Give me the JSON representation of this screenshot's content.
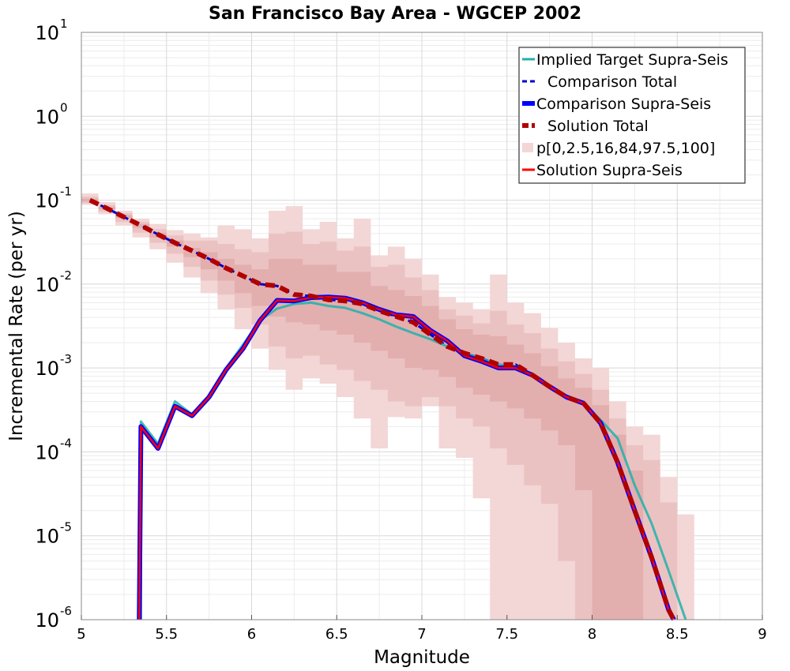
{
  "chart_data": {
    "type": "line",
    "title": "San Francisco Bay Area - WGCEP 2002",
    "xlabel": "Magnitude",
    "ylabel": "Incremental Rate (per yr)",
    "xlim": [
      5,
      9
    ],
    "ylim": [
      1e-06,
      10
    ],
    "yscale": "log",
    "grid": true,
    "legend_position": "top-right",
    "xticks": [
      "5",
      "5.5",
      "6",
      "6.5",
      "7",
      "7.5",
      "8",
      "8.5",
      "9"
    ],
    "yticks": [
      {
        "base": "10",
        "exp": "1"
      },
      {
        "base": "10",
        "exp": "0"
      },
      {
        "base": "10",
        "exp": "-1"
      },
      {
        "base": "10",
        "exp": "-2"
      },
      {
        "base": "10",
        "exp": "-3"
      },
      {
        "base": "10",
        "exp": "-4"
      },
      {
        "base": "10",
        "exp": "-5"
      },
      {
        "base": "10",
        "exp": "-6"
      }
    ],
    "bands": [
      {
        "label": "p[0,100]",
        "color": "#f3d6d6",
        "x": [
          5.05,
          5.15,
          5.25,
          5.35,
          5.45,
          5.55,
          5.65,
          5.75,
          5.85,
          5.95,
          6.05,
          6.15,
          6.25,
          6.35,
          6.45,
          6.55,
          6.65,
          6.75,
          6.85,
          6.95,
          7.05,
          7.15,
          7.25,
          7.35,
          7.45,
          7.55,
          7.65,
          7.75,
          7.85,
          7.95,
          8.05,
          8.15,
          8.25,
          8.35,
          8.45,
          8.55
        ],
        "lower": [
          0.088,
          0.068,
          0.05,
          0.036,
          0.026,
          0.018,
          0.012,
          0.0078,
          0.005,
          0.0029,
          0.0017,
          0.00095,
          0.00055,
          0.00075,
          0.00065,
          0.00045,
          0.00025,
          0.00011,
          0.00026,
          0.00025,
          0.00035,
          0.00011,
          8.5e-05,
          2.8e-05,
          9e-07,
          9e-07,
          9e-07,
          9e-07,
          9e-07,
          9e-07,
          9e-07,
          9e-07,
          9e-07,
          9e-07,
          9e-07,
          9e-07
        ],
        "upper": [
          0.12,
          0.095,
          0.075,
          0.06,
          0.052,
          0.044,
          0.04,
          0.036,
          0.05,
          0.045,
          0.035,
          0.075,
          0.085,
          0.045,
          0.055,
          0.035,
          0.06,
          0.022,
          0.028,
          0.02,
          0.013,
          0.007,
          0.006,
          0.005,
          0.013,
          0.006,
          0.0045,
          0.003,
          0.002,
          0.0013,
          0.001,
          0.0004,
          0.0002,
          0.00016,
          5e-05,
          1.8e-05
        ]
      },
      {
        "label": "p[2.5,97.5]",
        "color": "#ebc2c2",
        "x": [
          5.05,
          5.15,
          5.25,
          5.35,
          5.45,
          5.55,
          5.65,
          5.75,
          5.85,
          5.95,
          6.05,
          6.15,
          6.25,
          6.35,
          6.45,
          6.55,
          6.65,
          6.75,
          6.85,
          6.95,
          7.05,
          7.15,
          7.25,
          7.35,
          7.45,
          7.55,
          7.65,
          7.75,
          7.85,
          7.95,
          8.05,
          8.15,
          8.25,
          8.35,
          8.45
        ],
        "lower": [
          0.092,
          0.073,
          0.055,
          0.041,
          0.031,
          0.023,
          0.016,
          0.011,
          0.0075,
          0.0052,
          0.0033,
          0.0018,
          0.0013,
          0.0014,
          0.0011,
          0.00095,
          0.0007,
          0.00055,
          0.0004,
          0.00035,
          0.00045,
          0.00035,
          0.00025,
          0.0002,
          0.00011,
          7e-05,
          4e-05,
          2.4e-05,
          5e-06,
          9e-07,
          9e-07,
          9e-07,
          9e-07,
          9e-07,
          9e-07
        ],
        "upper": [
          0.11,
          0.088,
          0.07,
          0.055,
          0.045,
          0.038,
          0.033,
          0.033,
          0.03,
          0.026,
          0.024,
          0.04,
          0.042,
          0.03,
          0.032,
          0.025,
          0.028,
          0.016,
          0.017,
          0.012,
          0.0085,
          0.005,
          0.0042,
          0.0034,
          0.0048,
          0.0033,
          0.0026,
          0.0017,
          0.0012,
          0.00085,
          0.00055,
          0.00025,
          0.00012,
          8e-05,
          2.5e-05
        ]
      },
      {
        "label": "p[16,84]",
        "color": "#e3aeae",
        "x": [
          5.05,
          5.15,
          5.25,
          5.35,
          5.45,
          5.55,
          5.65,
          5.75,
          5.85,
          5.95,
          6.05,
          6.15,
          6.25,
          6.35,
          6.45,
          6.55,
          6.65,
          6.75,
          6.85,
          6.95,
          7.05,
          7.15,
          7.25,
          7.35,
          7.45,
          7.55,
          7.65,
          7.75,
          7.85,
          7.95,
          8.05,
          8.15,
          8.25
        ],
        "lower": [
          0.097,
          0.078,
          0.061,
          0.047,
          0.036,
          0.028,
          0.021,
          0.015,
          0.011,
          0.0078,
          0.0055,
          0.0041,
          0.0035,
          0.0033,
          0.0028,
          0.0025,
          0.002,
          0.0016,
          0.0013,
          0.001,
          0.00095,
          0.00078,
          0.00058,
          0.00048,
          0.0004,
          0.00033,
          0.00025,
          0.00018,
          0.00012,
          3.5e-05,
          9e-07,
          9e-07,
          9e-07
        ],
        "upper": [
          0.104,
          0.083,
          0.066,
          0.052,
          0.041,
          0.033,
          0.027,
          0.024,
          0.02,
          0.017,
          0.015,
          0.02,
          0.02,
          0.017,
          0.017,
          0.014,
          0.014,
          0.0095,
          0.0085,
          0.0072,
          0.0055,
          0.0038,
          0.0029,
          0.0025,
          0.0024,
          0.0019,
          0.0015,
          0.00105,
          0.00075,
          0.00058,
          0.00036,
          0.00016,
          6e-05
        ]
      }
    ],
    "series": [
      {
        "name": "Implied Target Supra-Seis",
        "color": "#20b2aa",
        "dash": "solid",
        "width": 3,
        "x": [
          5.35,
          5.35,
          5.45,
          5.55,
          5.65,
          5.75,
          5.85,
          5.95,
          6.05,
          6.15,
          6.25,
          6.35,
          6.45,
          6.55,
          6.65,
          6.75,
          6.85,
          6.95,
          7.05,
          7.15,
          7.25,
          7.35,
          7.45,
          7.55,
          7.65,
          7.75,
          7.85,
          7.95,
          8.05,
          8.15,
          8.25,
          8.35,
          8.45,
          8.55
        ],
        "values": [
          1e-06,
          0.00023,
          0.000125,
          0.0004,
          0.00028,
          0.00047,
          0.001,
          0.0019,
          0.0037,
          0.0051,
          0.0058,
          0.006,
          0.0055,
          0.0052,
          0.0045,
          0.0038,
          0.0031,
          0.0026,
          0.0022,
          0.0018,
          0.0015,
          0.0013,
          0.0011,
          0.00105,
          0.00082,
          0.00062,
          0.00046,
          0.00038,
          0.00024,
          0.000145,
          4e-05,
          1.4e-05,
          3.8e-06,
          1e-06
        ]
      },
      {
        "name": "Comparison Total",
        "color": "#0000cc",
        "dash": "dash",
        "width": 3,
        "x": [
          5.05,
          5.15,
          5.25,
          5.35,
          5.45,
          5.55,
          5.65,
          5.75,
          5.85,
          5.95,
          6.05,
          6.15,
          6.25,
          6.35,
          6.45,
          6.55,
          6.65,
          6.75,
          6.85,
          6.95,
          7.05,
          7.15,
          7.25,
          7.35,
          7.45,
          7.55,
          7.65,
          7.75,
          7.85,
          7.95,
          8.05,
          8.15,
          8.25,
          8.35,
          8.45,
          8.48
        ],
        "values": [
          0.1,
          0.08,
          0.063,
          0.05,
          0.039,
          0.031,
          0.025,
          0.02,
          0.0155,
          0.0125,
          0.01,
          0.0095,
          0.0075,
          0.0072,
          0.0065,
          0.0063,
          0.0058,
          0.0048,
          0.0041,
          0.0035,
          0.0025,
          0.0018,
          0.0015,
          0.0013,
          0.0011,
          0.0011,
          0.00082,
          0.0006,
          0.00045,
          0.00038,
          0.00022,
          7.5e-05,
          2e-05,
          5.5e-06,
          1.3e-06,
          1e-06
        ]
      },
      {
        "name": "Comparison Supra-Seis",
        "color": "#0000ff",
        "dash": "solid",
        "width": 6,
        "x": [
          5.34,
          5.35,
          5.45,
          5.55,
          5.65,
          5.75,
          5.85,
          5.95,
          6.05,
          6.15,
          6.25,
          6.35,
          6.45,
          6.55,
          6.65,
          6.75,
          6.85,
          6.95,
          7.05,
          7.15,
          7.25,
          7.35,
          7.45,
          7.55,
          7.65,
          7.75,
          7.85,
          7.95,
          8.05,
          8.15,
          8.25,
          8.35,
          8.45,
          8.48
        ],
        "values": [
          1e-06,
          0.0002,
          0.00011,
          0.00035,
          0.00027,
          0.00045,
          0.00095,
          0.0017,
          0.0037,
          0.0064,
          0.0063,
          0.0069,
          0.007,
          0.0068,
          0.006,
          0.005,
          0.0043,
          0.0041,
          0.0028,
          0.0021,
          0.0014,
          0.0012,
          0.001,
          0.001,
          0.00082,
          0.0006,
          0.00045,
          0.00038,
          0.00022,
          7.5e-05,
          2e-05,
          5.5e-06,
          1.3e-06,
          1e-06
        ]
      },
      {
        "name": "Solution Total",
        "color": "#b00000",
        "dash": "dash",
        "width": 6,
        "x": [
          5.05,
          5.15,
          5.25,
          5.35,
          5.45,
          5.55,
          5.65,
          5.75,
          5.85,
          5.95,
          6.05,
          6.15,
          6.25,
          6.35,
          6.45,
          6.55,
          6.65,
          6.75,
          6.85,
          6.95,
          7.05,
          7.15,
          7.25,
          7.35,
          7.45,
          7.55,
          7.65,
          7.75,
          7.85,
          7.95,
          8.05,
          8.15,
          8.25,
          8.35,
          8.45,
          8.48
        ],
        "values": [
          0.1,
          0.08,
          0.063,
          0.05,
          0.039,
          0.031,
          0.025,
          0.02,
          0.0155,
          0.0125,
          0.01,
          0.0095,
          0.0075,
          0.0072,
          0.0065,
          0.0063,
          0.0058,
          0.0048,
          0.0041,
          0.0035,
          0.0025,
          0.0018,
          0.0015,
          0.0013,
          0.0011,
          0.0011,
          0.00082,
          0.0006,
          0.00045,
          0.00038,
          0.00022,
          7.5e-05,
          2e-05,
          5.5e-06,
          1.3e-06,
          1e-06
        ]
      },
      {
        "name": "Solution Supra-Seis",
        "color": "#ff0000",
        "dash": "solid",
        "width": 2.5,
        "x": [
          5.34,
          5.35,
          5.45,
          5.55,
          5.65,
          5.75,
          5.85,
          5.95,
          6.05,
          6.15,
          6.25,
          6.35,
          6.45,
          6.55,
          6.65,
          6.75,
          6.85,
          6.95,
          7.05,
          7.15,
          7.25,
          7.35,
          7.45,
          7.55,
          7.65,
          7.75,
          7.85,
          7.95,
          8.05,
          8.15,
          8.25,
          8.35,
          8.45,
          8.48
        ],
        "values": [
          1e-06,
          0.0002,
          0.00011,
          0.00035,
          0.00027,
          0.00045,
          0.00095,
          0.0017,
          0.0037,
          0.0064,
          0.0063,
          0.0069,
          0.007,
          0.0068,
          0.006,
          0.005,
          0.0043,
          0.0041,
          0.0028,
          0.0021,
          0.0014,
          0.0012,
          0.001,
          0.001,
          0.00082,
          0.0006,
          0.00045,
          0.00038,
          0.00022,
          7.5e-05,
          2e-05,
          5.5e-06,
          1.3e-06,
          1e-06
        ]
      }
    ],
    "legend": [
      {
        "label": "Implied Target Supra-Seis",
        "color": "#20b2aa",
        "style": "solid"
      },
      {
        "label": "Comparison Total",
        "color": "#0000cc",
        "style": "dash"
      },
      {
        "label": "Comparison Supra-Seis",
        "color": "#0000ff",
        "style": "thick"
      },
      {
        "label": "Solution Total",
        "color": "#b00000",
        "style": "thickdash"
      },
      {
        "label": "p[0,2.5,16,84,97.5,100]",
        "color": "#f3d6d6",
        "style": "band"
      },
      {
        "label": "Solution Supra-Seis",
        "color": "#ff0000",
        "style": "solid"
      }
    ]
  }
}
